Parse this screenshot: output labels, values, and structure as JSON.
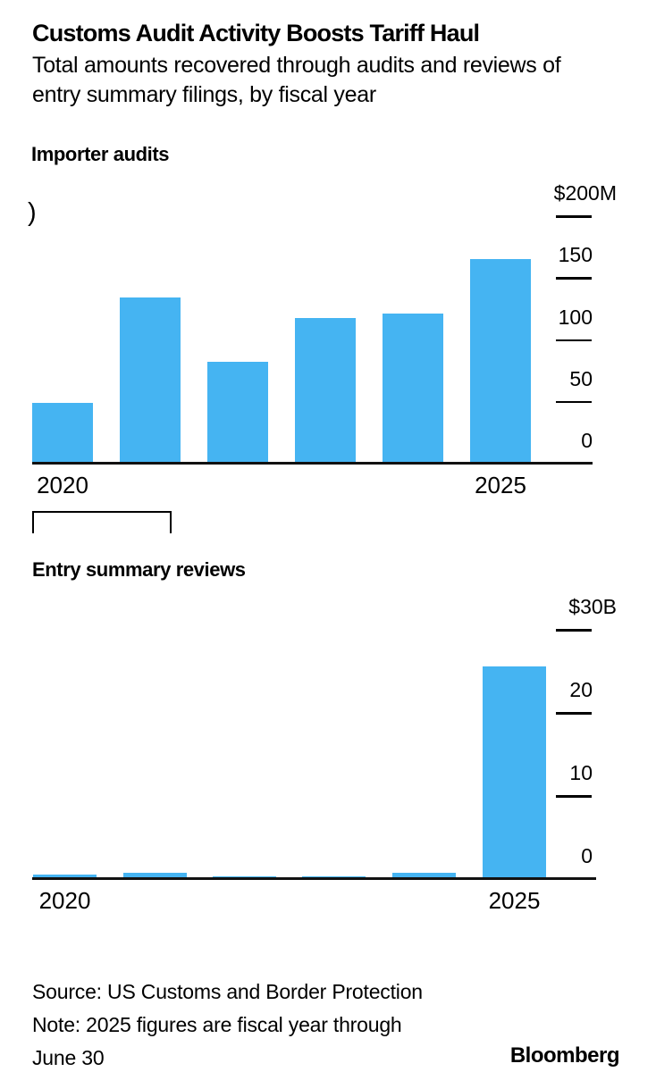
{
  "header": {
    "title": "Customs Audit Activity Boosts Tariff Haul",
    "subtitle": "Total amounts recovered through audits and reviews of entry summary filings, by fiscal year",
    "subtitle_lines": [
      "Total amounts recovered through audits and reviews of",
      "entry summary filings, by fiscal year"
    ]
  },
  "artifacts": {
    "clipped_axis_glyph": ")"
  },
  "colors": {
    "bar_blue": "#45b4f2",
    "text": "#000000",
    "axis": "#111111"
  },
  "chart_data": [
    {
      "type": "bar",
      "title": "Importer audits",
      "unit": "$M",
      "categories": [
        "2020",
        "2021",
        "2022",
        "2023",
        "2024",
        "2025"
      ],
      "values": [
        49,
        134,
        82,
        118,
        121,
        165
      ],
      "ylim": [
        0,
        200
      ],
      "grid": false,
      "axis_side": "right",
      "legend": "none",
      "bar_color": "#45b4f2",
      "yticks": [
        {
          "value": 200,
          "label": "$200M"
        },
        {
          "value": 150,
          "label": "150"
        },
        {
          "value": 100,
          "label": "100"
        },
        {
          "value": 50,
          "label": "50"
        },
        {
          "value": 0,
          "label": "0"
        }
      ],
      "xticks": [
        {
          "label": "2020",
          "bar_index": 0
        },
        {
          "label": "2025",
          "bar_index": 5
        }
      ]
    },
    {
      "type": "bar",
      "title": "Entry summary reviews",
      "unit": "$B",
      "categories": [
        "2020",
        "2021",
        "2022",
        "2023",
        "2024",
        "2025"
      ],
      "values": [
        0.5,
        0.7,
        0.3,
        0.3,
        0.8,
        25.6
      ],
      "ylim": [
        0,
        30
      ],
      "grid": false,
      "axis_side": "right",
      "legend": "none",
      "bar_color": "#45b4f2",
      "yticks": [
        {
          "value": 30,
          "label": "$30B"
        },
        {
          "value": 20,
          "label": "20"
        },
        {
          "value": 10,
          "label": "10"
        },
        {
          "value": 0,
          "label": "0"
        }
      ],
      "xticks": [
        {
          "label": "2020",
          "bar_index": 0
        },
        {
          "label": "2025",
          "bar_index": 5
        }
      ]
    }
  ],
  "footer": {
    "lines": [
      "Source: US Customs and Border Protection",
      "Note: 2025 figures are fiscal year through",
      "June 30"
    ],
    "brand": "Bloomberg"
  }
}
